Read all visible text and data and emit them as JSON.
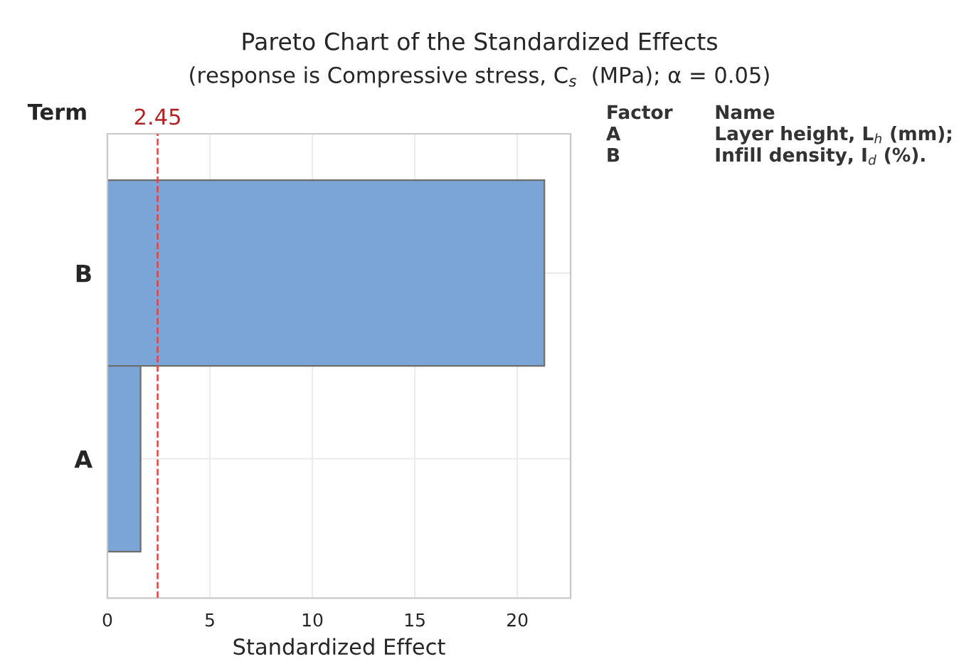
{
  "chart_data": {
    "type": "bar",
    "orientation": "horizontal",
    "title": "Pareto Chart of the Standardized Effects",
    "subtitle": "(response is Compressive stress, C$_{s}$  (MPa); α = 0.05)",
    "xlabel": "Standardized Effect",
    "ylabel": "Term",
    "categories": [
      "B",
      "A"
    ],
    "values": [
      21.32,
      1.62
    ],
    "color": "#7ba5d6",
    "xlim": [
      0,
      22.6
    ],
    "xticks": [
      0,
      5,
      10,
      15,
      20
    ],
    "grid": true,
    "ref_lines": [
      {
        "axis": "x",
        "value": 2.45,
        "label": "2.45",
        "color": "#e8413c",
        "line_style": "dashed"
      }
    ],
    "annotations": [
      "Factor",
      "Name",
      "A",
      "Layer height, L$_{h}$ (mm);",
      "B",
      "Infill density, I$_{d}$ (%)."
    ]
  }
}
